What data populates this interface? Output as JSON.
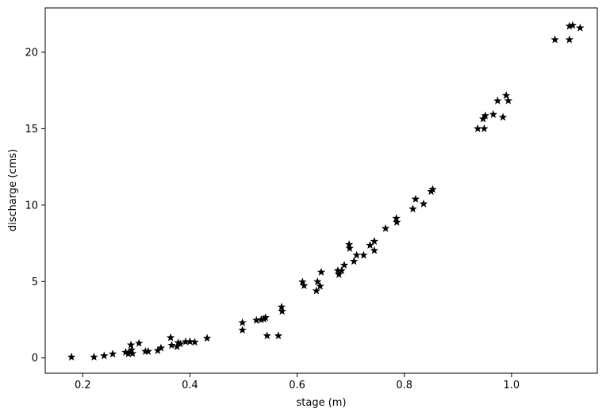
{
  "chart_data": {
    "type": "scatter",
    "title": "",
    "xlabel": "stage (m)",
    "ylabel": "discharge (cms)",
    "xlim": [
      0.13,
      1.16
    ],
    "ylim": [
      -1.0,
      22.9
    ],
    "xticks": [
      0.2,
      0.4,
      0.6,
      0.8,
      1.0
    ],
    "xtick_labels": [
      "0.2",
      "0.4",
      "0.6",
      "0.8",
      "1.0"
    ],
    "yticks": [
      0,
      5,
      10,
      15,
      20
    ],
    "ytick_labels": [
      "0",
      "5",
      "10",
      "15",
      "20"
    ],
    "marker": "star",
    "color": "#000000",
    "grid": false,
    "points": [
      [
        0.179,
        0.06
      ],
      [
        0.221,
        0.06
      ],
      [
        0.24,
        0.14
      ],
      [
        0.256,
        0.26
      ],
      [
        0.28,
        0.37
      ],
      [
        0.285,
        0.27
      ],
      [
        0.288,
        0.38
      ],
      [
        0.29,
        0.85
      ],
      [
        0.291,
        0.52
      ],
      [
        0.293,
        0.29
      ],
      [
        0.305,
        0.96
      ],
      [
        0.317,
        0.43
      ],
      [
        0.322,
        0.43
      ],
      [
        0.34,
        0.48
      ],
      [
        0.346,
        0.65
      ],
      [
        0.364,
        1.33
      ],
      [
        0.366,
        0.83
      ],
      [
        0.376,
        0.74
      ],
      [
        0.378,
        0.99
      ],
      [
        0.382,
        0.92
      ],
      [
        0.392,
        1.06
      ],
      [
        0.4,
        1.07
      ],
      [
        0.409,
        1.03
      ],
      [
        0.432,
        1.29
      ],
      [
        0.498,
        2.31
      ],
      [
        0.498,
        1.82
      ],
      [
        0.524,
        2.46
      ],
      [
        0.533,
        2.5
      ],
      [
        0.538,
        2.55
      ],
      [
        0.541,
        2.64
      ],
      [
        0.544,
        1.45
      ],
      [
        0.565,
        1.45
      ],
      [
        0.571,
        3.33
      ],
      [
        0.572,
        3.05
      ],
      [
        0.61,
        4.97
      ],
      [
        0.613,
        4.73
      ],
      [
        0.636,
        4.39
      ],
      [
        0.638,
        4.99
      ],
      [
        0.643,
        4.69
      ],
      [
        0.645,
        5.61
      ],
      [
        0.676,
        5.71
      ],
      [
        0.678,
        5.46
      ],
      [
        0.683,
        5.71
      ],
      [
        0.688,
        6.07
      ],
      [
        0.697,
        7.42
      ],
      [
        0.698,
        7.17
      ],
      [
        0.706,
        6.32
      ],
      [
        0.711,
        6.72
      ],
      [
        0.724,
        6.72
      ],
      [
        0.736,
        7.37
      ],
      [
        0.744,
        7.63
      ],
      [
        0.744,
        7.03
      ],
      [
        0.765,
        8.47
      ],
      [
        0.785,
        9.13
      ],
      [
        0.786,
        8.88
      ],
      [
        0.816,
        9.75
      ],
      [
        0.821,
        10.39
      ],
      [
        0.836,
        10.08
      ],
      [
        0.85,
        10.89
      ],
      [
        0.853,
        11.03
      ],
      [
        0.937,
        15.0
      ],
      [
        0.947,
        15.64
      ],
      [
        0.949,
        15.0
      ],
      [
        0.951,
        15.85
      ],
      [
        0.966,
        15.93
      ],
      [
        0.974,
        16.82
      ],
      [
        0.984,
        15.75
      ],
      [
        0.99,
        17.17
      ],
      [
        0.994,
        16.83
      ],
      [
        1.081,
        20.82
      ],
      [
        1.108,
        20.82
      ],
      [
        1.108,
        21.71
      ],
      [
        1.114,
        21.76
      ],
      [
        1.128,
        21.59
      ]
    ]
  }
}
